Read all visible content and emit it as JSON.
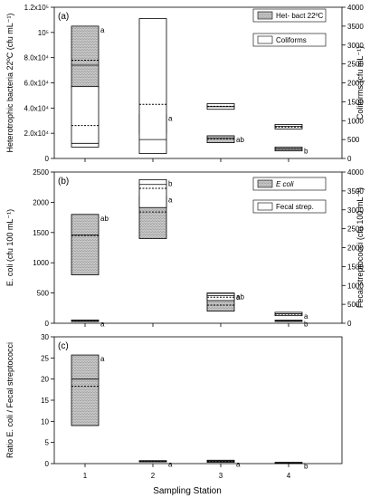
{
  "colors": {
    "box_fill": "#bdbdbd",
    "box_hatch": "#8a8a8a",
    "open_fill": "#ffffff",
    "line": "#000000"
  },
  "x_axis": {
    "label": "Sampling Station",
    "ticks": [
      "1",
      "2",
      "3",
      "4"
    ]
  },
  "chart_data": [
    {
      "type": "box",
      "panel": "(a)",
      "ylabel_left": "Heterotrophic bacteria 22ºC (cfu mL⁻¹)",
      "ylabel_right": "Coliforms (cfu mL⁻¹)",
      "ylim_left": [
        0,
        120000
      ],
      "ylim_right": [
        0,
        4000
      ],
      "yticks_left": [
        "0",
        "2.0x10⁴",
        "4.0x10⁴",
        "6.0x10⁴",
        "8.0x10⁴",
        "10⁵",
        "1.2x10⁵"
      ],
      "yticks_right": [
        "0",
        "500",
        "1000",
        "1500",
        "2000",
        "2500",
        "3000",
        "3500",
        "4000"
      ],
      "legend": [
        "Het- bact 22ºC",
        "Coliforms"
      ],
      "series": [
        {
          "name": "Het- bact 22ºC",
          "axis": "left",
          "style": "filled",
          "boxes": [
            {
              "x": 1,
              "q1": 56000,
              "median": 74000,
              "mean": 78000,
              "q3": 105000,
              "label": "a"
            },
            {
              "x": 2,
              "q1": 20000,
              "median": 27000,
              "mean": 27000,
              "q3": 35000,
              "label": "a"
            },
            {
              "x": 3,
              "q1": 12500,
              "median": 16000,
              "mean": 15500,
              "q3": 18000,
              "label": "ab"
            },
            {
              "x": 4,
              "q1": 6000,
              "median": 7500,
              "mean": 7500,
              "q3": 9000,
              "label": "b"
            }
          ]
        },
        {
          "name": "Coliforms",
          "axis": "right",
          "style": "open",
          "boxes": [
            {
              "x": 1,
              "q1": 300,
              "median": 400,
              "mean": 870,
              "q3": 1900
            },
            {
              "x": 2,
              "q1": 130,
              "median": 500,
              "mean": 1430,
              "q3": 3700
            },
            {
              "x": 3,
              "q1": 1300,
              "median": 1370,
              "mean": 1380,
              "q3": 1450
            },
            {
              "x": 4,
              "q1": 780,
              "median": 850,
              "mean": 830,
              "q3": 900
            }
          ]
        }
      ]
    },
    {
      "type": "box",
      "panel": "(b)",
      "ylabel_left": "E. coli (cfu 100 mL⁻¹)",
      "ylabel_right": "Fecal streptococci (cfu 100 mL⁻¹)",
      "ylim_left": [
        0,
        2500
      ],
      "ylim_right": [
        0,
        4000
      ],
      "yticks_left": [
        "0",
        "500",
        "1000",
        "1500",
        "2000",
        "2500"
      ],
      "yticks_right": [
        "0",
        "500",
        "1000",
        "1500",
        "2000",
        "2500",
        "3000",
        "3500",
        "4000"
      ],
      "legend": [
        "E coli",
        "Fecal strep."
      ],
      "series": [
        {
          "name": "E coli",
          "axis": "left",
          "style": "filled",
          "boxes": [
            {
              "x": 1,
              "q1": 800,
              "median": 1460,
              "mean": 1450,
              "q3": 1800,
              "label": "ab"
            },
            {
              "x": 2,
              "q1": 1400,
              "median": 2000,
              "mean": 1840,
              "q3": 2100,
              "label": "a"
            },
            {
              "x": 3,
              "q1": 200,
              "median": 400,
              "mean": 300,
              "q3": 500,
              "label": "ab"
            },
            {
              "x": 4,
              "q1": 30,
              "median": 40,
              "mean": 40,
              "q3": 50,
              "label": "b"
            }
          ]
        },
        {
          "name": "Fecal strep.",
          "axis": "right",
          "style": "open",
          "boxes": [
            {
              "x": 1,
              "q1": 45,
              "median": 70,
              "mean": 65,
              "q3": 85,
              "label": "a"
            },
            {
              "x": 2,
              "q1": 3060,
              "median": 3670,
              "mean": 3570,
              "q3": 3800,
              "label": "b"
            },
            {
              "x": 3,
              "q1": 600,
              "median": 730,
              "mean": 690,
              "q3": 790,
              "label": "a"
            },
            {
              "x": 4,
              "q1": 200,
              "median": 250,
              "mean": 240,
              "q3": 290,
              "label": "a"
            }
          ]
        }
      ]
    },
    {
      "type": "box",
      "panel": "(c)",
      "ylabel_left": "Ratio E. coli / Fecal streptococci",
      "ylim_left": [
        0,
        30
      ],
      "yticks_left": [
        "0",
        "5",
        "10",
        "15",
        "20",
        "25",
        "30"
      ],
      "series": [
        {
          "name": "",
          "axis": "left",
          "style": "filled",
          "boxes": [
            {
              "x": 1,
              "q1": 9,
              "median": 20,
              "mean": 18.3,
              "q3": 25.7,
              "label": "a"
            },
            {
              "x": 2,
              "q1": 0.4,
              "median": 0.6,
              "mean": 0.5,
              "q3": 0.7,
              "label": "a"
            },
            {
              "x": 3,
              "q1": 0.3,
              "median": 0.6,
              "mean": 0.5,
              "q3": 0.8,
              "label": "a"
            },
            {
              "x": 4,
              "q1": 0.05,
              "median": 0.2,
              "mean": 0.15,
              "q3": 0.3,
              "label": "b"
            }
          ]
        }
      ]
    }
  ]
}
